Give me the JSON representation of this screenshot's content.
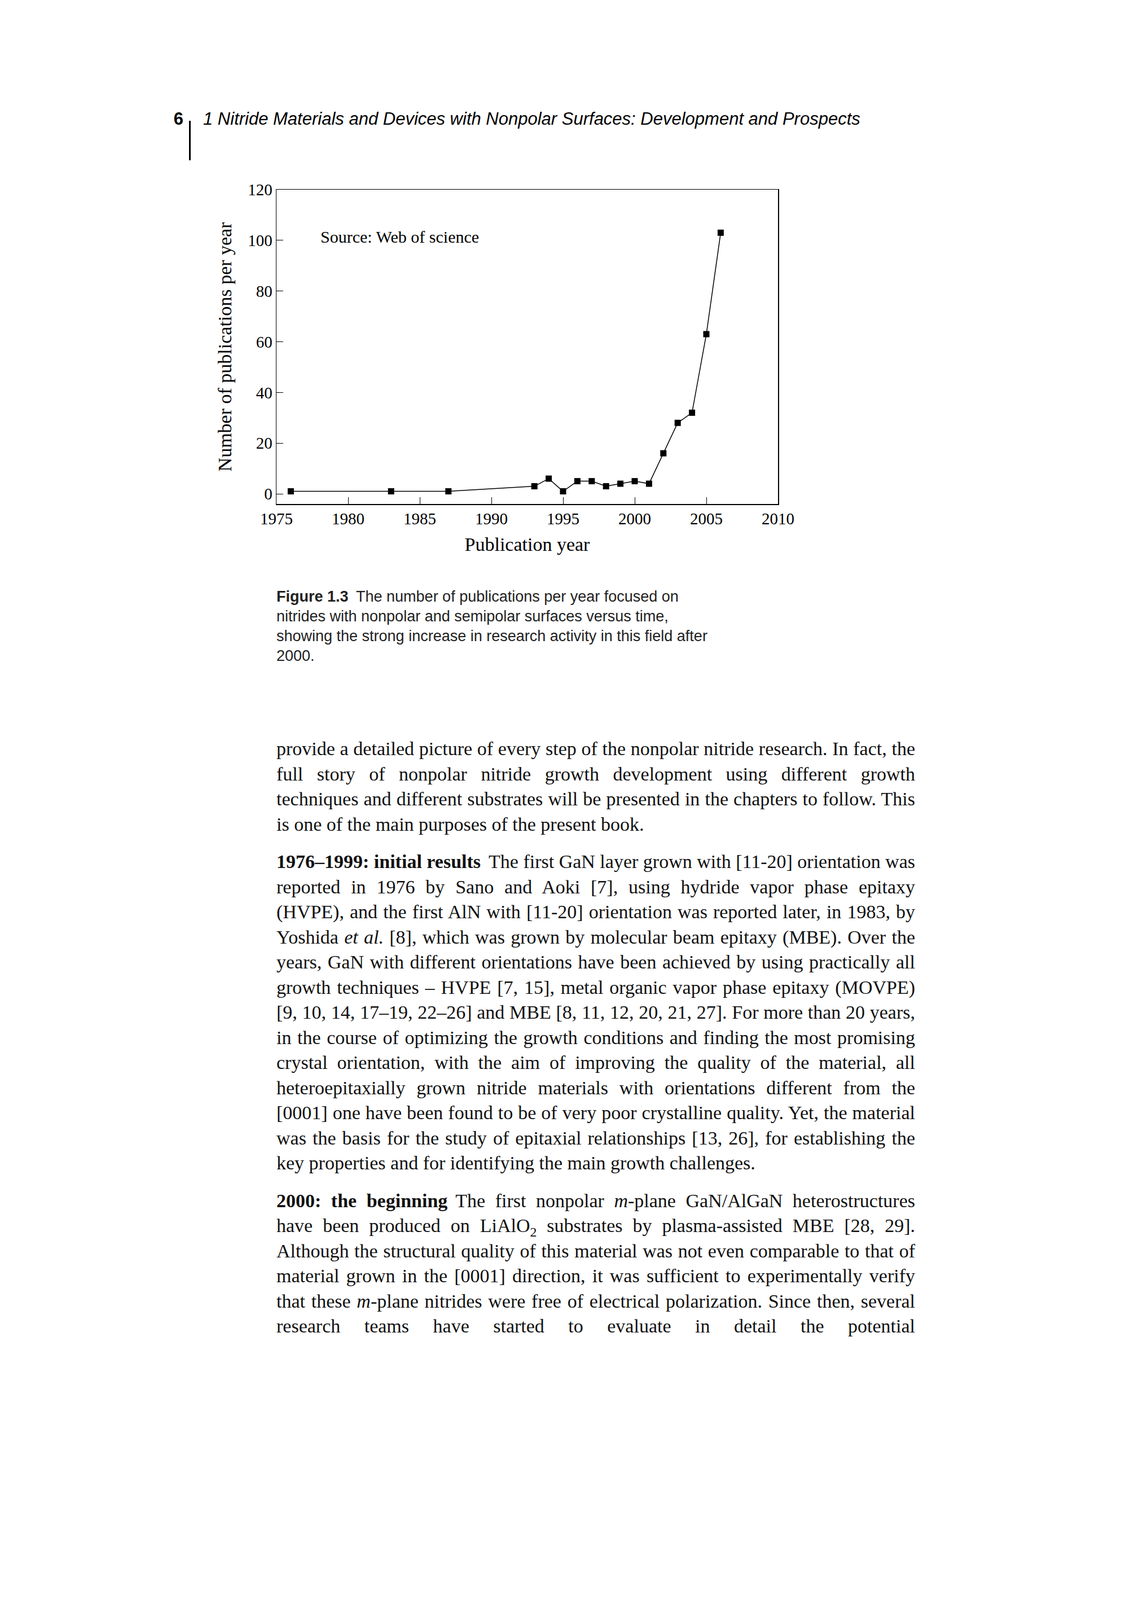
{
  "page_number": "6",
  "running_head": "1 Nitride Materials and Devices with Nonpolar Surfaces: Development and Prospects",
  "chart_data": {
    "type": "line",
    "x": [
      1976,
      1983,
      1987,
      1993,
      1994,
      1995,
      1996,
      1997,
      1998,
      1999,
      2000,
      2001,
      2002,
      2003,
      2004,
      2005,
      2006
    ],
    "values": [
      1,
      1,
      1,
      3,
      6,
      1,
      5,
      5,
      3,
      4,
      5,
      4,
      16,
      28,
      32,
      63,
      103
    ],
    "color": "#000000",
    "marker": "square",
    "line_style": "solid",
    "xlim": [
      1975,
      2010
    ],
    "ylim": [
      -4,
      120
    ],
    "xticks": [
      1975,
      1980,
      1985,
      1990,
      1995,
      2000,
      2005,
      2010
    ],
    "yticks": [
      0,
      20,
      40,
      60,
      80,
      100,
      120
    ],
    "xlabel": "Publication year",
    "ylabel": "Number of publications per year",
    "annotation": "Source: Web of science",
    "grid": false
  },
  "caption": {
    "label": "Figure 1.3",
    "text": "The number of publications per year focused on nitrides with nonpolar and semipolar surfaces versus time, showing the strong increase in research activity in this field after 2000."
  },
  "paragraphs": [
    {
      "runs": [
        {
          "text": "provide a detailed picture of every step of the nonpolar nitride research. In fact, the full story of nonpolar nitride growth development using different growth techniques and different substrates will be presented in the chapters to follow. This is one of the main purposes of the present book."
        }
      ]
    },
    {
      "heading": "1976–1999: initial results",
      "runs": [
        {
          "text": "The first GaN layer grown with [11-20] orientation was reported in 1976 by Sano and Aoki [7], using hydride vapor phase epitaxy (HVPE), and the first AlN with [11-20] orientation was reported later, in 1983, by Yoshida "
        },
        {
          "text": "et al.",
          "style": "italic"
        },
        {
          "text": " [8], which was grown by molecular beam epitaxy (MBE). Over the years, GaN with different orientations have been achieved by using practically all growth techniques – HVPE [7, 15], metal organic vapor phase epitaxy (MOVPE) [9, 10, 14, 17–19, 22–26] and MBE [8, 11, 12, 20, 21, 27]. For more than 20 years, in the course of optimizing the growth conditions and finding the most promising crystal orientation, with the aim of improving the quality of the material, all heteroepitaxially grown nitride materials with orientations different from the [0001] one have been found to be of very poor crystalline quality. Yet, the material was the basis for the study of epitaxial relationships [13, 26], for establishing the key properties and for identifying the main growth challenges."
        }
      ]
    },
    {
      "heading": "2000: the beginning",
      "runs": [
        {
          "text": "The first nonpolar "
        },
        {
          "text": "m",
          "style": "italic"
        },
        {
          "text": "-plane GaN/AlGaN heterostructures have been produced on LiAlO"
        },
        {
          "text": "2",
          "style": "sub"
        },
        {
          "text": " substrates by plasma-assisted MBE [28, 29]. Although the structural quality of this material was not even comparable to that of material grown in the [0001] direction, it was sufficient to experimentally verify that these "
        },
        {
          "text": "m",
          "style": "italic"
        },
        {
          "text": "-plane nitrides were free of electrical polarization. Since then, several research teams have started to evaluate in detail the potential"
        }
      ]
    }
  ]
}
